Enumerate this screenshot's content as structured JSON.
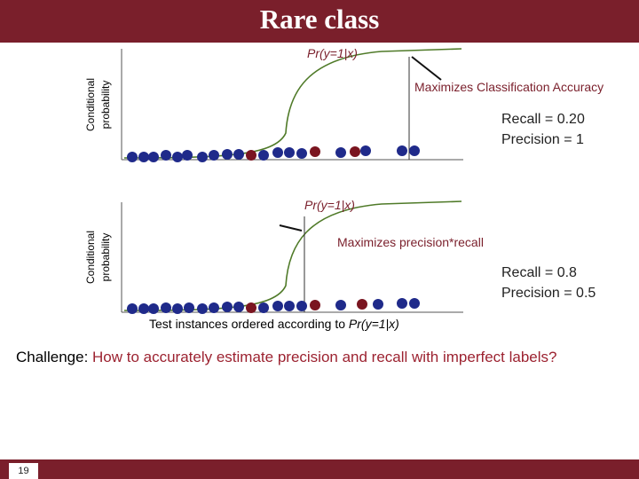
{
  "slide": {
    "title": "Rare class",
    "page_number": "19",
    "accent_color": "#7a1f2b",
    "challenge_label": "Challenge",
    "challenge_colon": ": ",
    "challenge_text": "How to accurately estimate precision and recall with imperfect labels?"
  },
  "diagram": {
    "top_panel": {
      "y_axis_label_line1": "Conditional",
      "y_axis_label_line2": "probability",
      "curve_label": "Pr(y=1|x)",
      "annotation": "Maximizes Classification Accuracy",
      "recall_text": "Recall = 0.20",
      "precision_text": "Precision = 1"
    },
    "bottom_panel": {
      "y_axis_label_line1": "Conditional",
      "y_axis_label_line2": "probability",
      "curve_label": "Pr(y=1|x)",
      "annotation": "Maximizes precision*recall",
      "recall_text": "Recall = 0.8",
      "precision_text": "Precision = 0.5",
      "x_axis_label_prefix": "Test instances ordered according to ",
      "x_axis_label_var": "Pr(y=1|x)"
    },
    "colors": {
      "negative_dot": "#1f2a8a",
      "positive_dot": "#7a1520",
      "curve": "#4f7a28"
    }
  }
}
